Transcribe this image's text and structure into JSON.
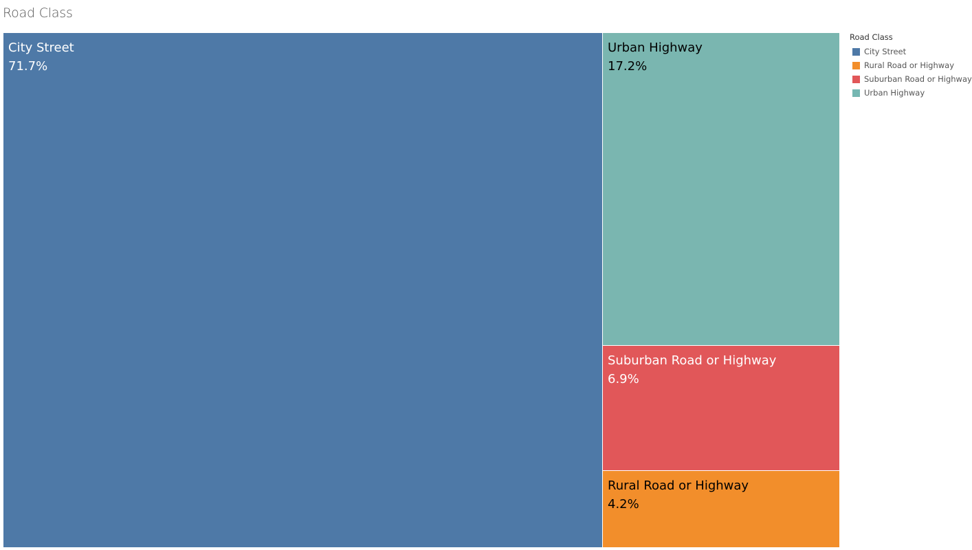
{
  "header": {
    "title": "Road Class"
  },
  "legend": {
    "title": "Road Class",
    "items": [
      {
        "label": "City Street",
        "color": "#4e79a7"
      },
      {
        "label": "Rural Road or Highway",
        "color": "#f28e2b"
      },
      {
        "label": "Suburban Road or Highway",
        "color": "#e15759"
      },
      {
        "label": "Urban Highway",
        "color": "#76b7b2"
      }
    ]
  },
  "chart_data": {
    "type": "treemap",
    "items": [
      {
        "label": "City Street",
        "value": 71.7,
        "display": "71.7%",
        "color": "#4e79a7",
        "text_color": "#ffffff"
      },
      {
        "label": "Urban Highway",
        "value": 17.2,
        "display": "17.2%",
        "color": "#7ab6b0",
        "text_color": "#000000"
      },
      {
        "label": "Suburban Road or Highway",
        "value": 6.9,
        "display": "6.9%",
        "color": "#e15759",
        "text_color": "#ffffff"
      },
      {
        "label": "Rural Road or Highway",
        "value": 4.2,
        "display": "4.2%",
        "color": "#f28e2b",
        "text_color": "#000000"
      }
    ]
  }
}
